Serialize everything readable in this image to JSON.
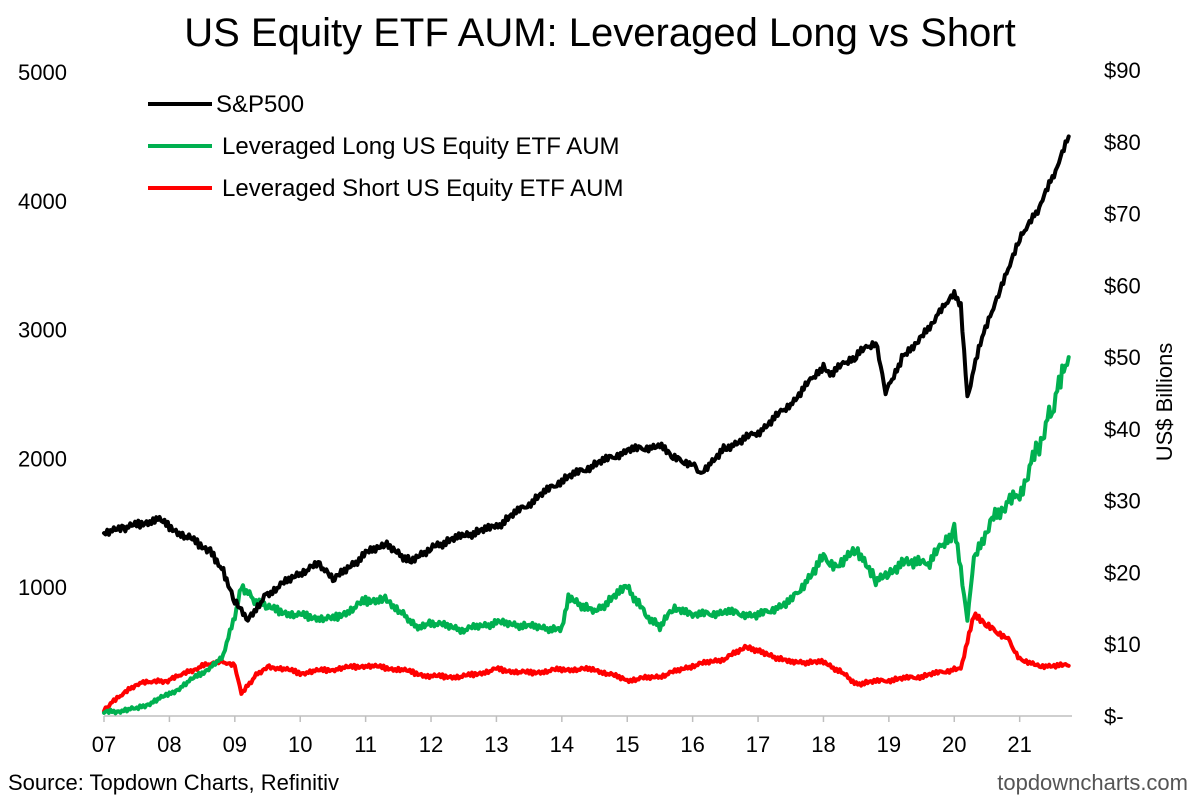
{
  "chart_data": {
    "type": "line",
    "title": "US Equity ETF AUM: Leveraged Long vs Short",
    "y_left": {
      "ticks": [
        "5000",
        "4000",
        "3000",
        "2000",
        "1000"
      ],
      "range": [
        0,
        5000
      ]
    },
    "y_right": {
      "label": "US$ Billions",
      "ticks": [
        "$90",
        "$80",
        "$70",
        "$60",
        "$50",
        "$40",
        "$30",
        "$20",
        "$10",
        "$-"
      ],
      "range": [
        0,
        90
      ]
    },
    "x_ticks": [
      "07",
      "08",
      "09",
      "10",
      "11",
      "12",
      "13",
      "14",
      "15",
      "16",
      "17",
      "18",
      "19",
      "20",
      "21"
    ],
    "x_range": [
      2007.0,
      2021.8
    ],
    "legend": [
      "S&P500",
      "Leveraged Long US Equity ETF AUM",
      "Leveraged Short US Equity ETF AUM"
    ],
    "legend_position": "top-left",
    "series": [
      {
        "name": "S&P500",
        "axis": "left",
        "color": "#000000",
        "x": [
          2007.0,
          2007.3,
          2007.8,
          2008.3,
          2008.6,
          2008.8,
          2009.0,
          2009.2,
          2009.5,
          2010.0,
          2010.3,
          2010.5,
          2011.0,
          2011.3,
          2011.7,
          2012.0,
          2012.5,
          2013.0,
          2013.5,
          2014.0,
          2014.5,
          2015.0,
          2015.5,
          2015.7,
          2016.0,
          2016.1,
          2016.5,
          2017.0,
          2017.5,
          2018.0,
          2018.1,
          2018.5,
          2018.8,
          2018.95,
          2019.2,
          2019.5,
          2020.0,
          2020.1,
          2020.2,
          2020.4,
          2020.7,
          2021.0,
          2021.3,
          2021.6,
          2021.75
        ],
        "values": [
          1420,
          1450,
          1530,
          1380,
          1290,
          1150,
          900,
          760,
          950,
          1110,
          1180,
          1050,
          1260,
          1330,
          1200,
          1310,
          1400,
          1470,
          1650,
          1830,
          1950,
          2060,
          2100,
          2000,
          1960,
          1880,
          2080,
          2200,
          2420,
          2720,
          2650,
          2800,
          2900,
          2500,
          2780,
          2950,
          3280,
          3200,
          2480,
          2900,
          3300,
          3700,
          3950,
          4300,
          4500
        ]
      },
      {
        "name": "Leveraged Long US Equity ETF AUM",
        "axis": "right",
        "color": "#00b050",
        "x": [
          2007.0,
          2007.5,
          2008.0,
          2008.5,
          2008.8,
          2009.0,
          2009.1,
          2009.3,
          2009.5,
          2010.0,
          2010.5,
          2011.0,
          2011.3,
          2011.6,
          2011.8,
          2012.0,
          2012.5,
          2013.0,
          2013.5,
          2014.0,
          2014.1,
          2014.5,
          2015.0,
          2015.3,
          2015.5,
          2015.7,
          2016.0,
          2016.5,
          2017.0,
          2017.5,
          2018.0,
          2018.2,
          2018.5,
          2018.8,
          2019.0,
          2019.3,
          2019.6,
          2020.0,
          2020.1,
          2020.2,
          2020.3,
          2020.6,
          2021.0,
          2021.3,
          2021.5,
          2021.75
        ],
        "values": [
          0.5,
          1.0,
          3.0,
          6.0,
          8.0,
          14.0,
          18.0,
          16.0,
          15.0,
          14.0,
          13.5,
          16.0,
          16.5,
          14.0,
          12.5,
          13.0,
          12.0,
          13.0,
          12.5,
          12.0,
          16.5,
          14.5,
          18.0,
          14.0,
          12.5,
          15.0,
          14.0,
          14.5,
          14.0,
          16.0,
          22.0,
          21.0,
          23.5,
          19.0,
          20.0,
          21.5,
          21.0,
          26.0,
          20.0,
          13.0,
          22.0,
          28.0,
          31.0,
          38.0,
          43.0,
          50.0
        ]
      },
      {
        "name": "Leveraged Short US Equity ETF AUM",
        "axis": "right",
        "color": "#ff0000",
        "x": [
          2007.0,
          2007.5,
          2008.0,
          2008.5,
          2008.8,
          2009.0,
          2009.1,
          2009.3,
          2009.5,
          2010.0,
          2010.5,
          2011.0,
          2011.5,
          2012.0,
          2012.5,
          2013.0,
          2013.5,
          2014.0,
          2014.5,
          2015.0,
          2015.5,
          2016.0,
          2016.5,
          2016.8,
          2017.0,
          2017.5,
          2018.0,
          2018.3,
          2018.5,
          2019.0,
          2019.5,
          2020.0,
          2020.1,
          2020.3,
          2020.5,
          2020.8,
          2021.0,
          2021.3,
          2021.75
        ],
        "values": [
          1.0,
          4.5,
          5.0,
          7.0,
          7.5,
          7.0,
          3.0,
          5.5,
          7.0,
          6.0,
          6.5,
          7.0,
          6.5,
          5.5,
          5.5,
          6.5,
          6.0,
          6.5,
          6.5,
          5.0,
          5.5,
          7.0,
          8.0,
          9.5,
          9.0,
          7.5,
          7.5,
          6.0,
          4.5,
          5.0,
          5.5,
          6.5,
          6.5,
          14.0,
          12.5,
          11.0,
          8.0,
          7.0,
          7.0
        ]
      }
    ]
  },
  "footer": {
    "source": "Source: Topdown Charts, Refinitiv",
    "brand": "topdowncharts.com"
  }
}
